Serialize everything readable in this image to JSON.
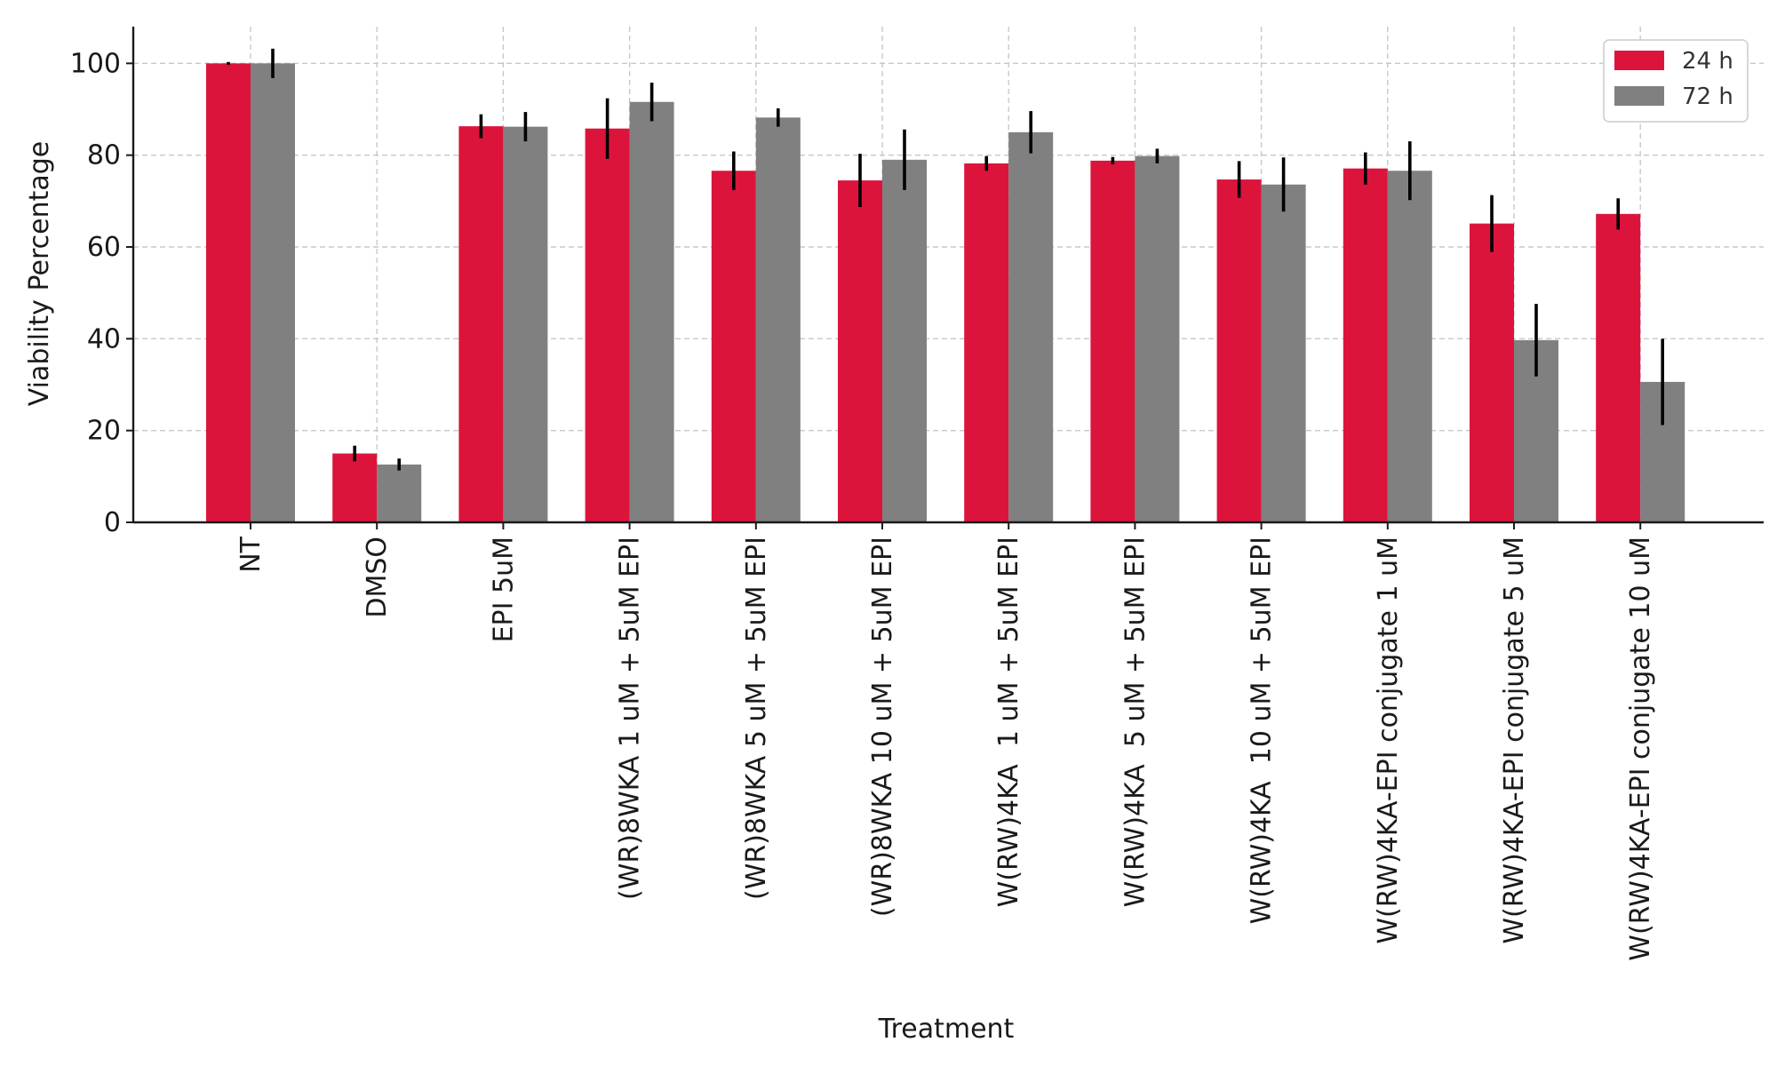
{
  "chart_data": {
    "type": "bar",
    "xlabel": "Treatment",
    "ylabel": "Viability Percentage",
    "ylim": [
      0,
      108
    ],
    "yticks": [
      0,
      20,
      40,
      60,
      80,
      100
    ],
    "grid": true,
    "legend_position": "top-right",
    "categories": [
      "NT",
      "DMSO",
      "EPI 5uM",
      "(WR)8WKA 1 uM + 5uM EPI",
      "(WR)8WKA 5 uM + 5uM EPI",
      "(WR)8WKA 10 uM + 5uM EPI",
      "W(RW)4KA  1 uM + 5uM EPI",
      "W(RW)4KA  5 uM + 5uM EPI",
      "W(RW)4KA  10 uM + 5uM EPI",
      "W(RW)4KA-EPI conjugate 1 uM",
      "W(RW)4KA-EPI conjugate 5 uM",
      "W(RW)4KA-EPI conjugate 10 uM"
    ],
    "series": [
      {
        "name": "24 h",
        "color": "#dc143c",
        "values": [
          100,
          15,
          86.3,
          85.8,
          76.6,
          74.5,
          78.2,
          78.8,
          74.7,
          77.1,
          65.1,
          67.2
        ],
        "errors": [
          0.3,
          1.7,
          2.6,
          6.6,
          4.2,
          5.8,
          1.6,
          0.8,
          4.0,
          3.5,
          6.2,
          3.4
        ]
      },
      {
        "name": "72 h",
        "color": "#808080",
        "values": [
          100,
          12.6,
          86.2,
          91.6,
          88.2,
          79.0,
          85.0,
          79.8,
          73.6,
          76.6,
          39.7,
          30.6
        ],
        "errors": [
          3.2,
          1.3,
          3.2,
          4.2,
          2.0,
          6.6,
          4.6,
          1.6,
          5.9,
          6.4,
          7.9,
          9.4
        ]
      }
    ]
  }
}
